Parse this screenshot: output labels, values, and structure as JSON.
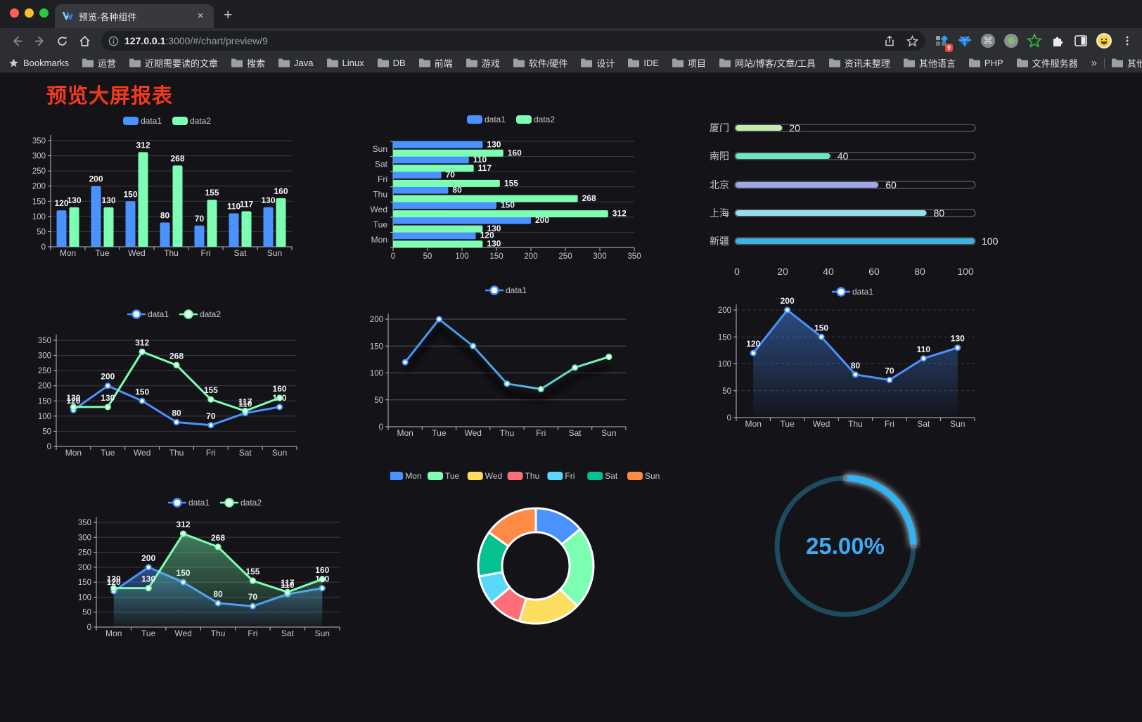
{
  "browser": {
    "tab_title": "预览-各种组件",
    "close_glyph": "×",
    "newtab_glyph": "+",
    "url_host": "127.0.0.1",
    "url_rest": ":3000/#/chart/preview/9",
    "extension_badge": "9",
    "bookmarks_label": "Bookmarks",
    "bookmark_folders": [
      "运营",
      "近期需要读的文章",
      "搜索",
      "Java",
      "Linux",
      "DB",
      "前端",
      "游戏",
      "软件/硬件",
      "设计",
      "IDE",
      "项目",
      "网站/博客/文章/工具",
      "资讯未整理",
      "其他语言",
      "PHP",
      "文件服务器"
    ],
    "overflow_glyph": "»",
    "other_bookmarks": "其他书签"
  },
  "page": {
    "title": "预览大屏报表",
    "title_color": "#f5391c",
    "background": "#131318"
  },
  "palette": {
    "blue": "#4992ff",
    "green": "#7cffb2",
    "yellow": "#fddd60",
    "red": "#ff6e76",
    "cyan": "#58d9f9",
    "teal": "#05c091",
    "orange": "#ff8a45",
    "axis_text": "#c6c9ce",
    "label_text": "#f2f3f5",
    "grid": "#3a3c42"
  },
  "chart_data": [
    {
      "id": "c1",
      "type": "bar",
      "categories": [
        "Mon",
        "Tue",
        "Wed",
        "Thu",
        "Fri",
        "Sat",
        "Sun"
      ],
      "series": [
        {
          "name": "data1",
          "color": "#4992ff",
          "values": [
            120,
            200,
            150,
            80,
            70,
            110,
            130
          ]
        },
        {
          "name": "data2",
          "color": "#7cffb2",
          "values": [
            130,
            130,
            312,
            268,
            155,
            117,
            160
          ]
        }
      ],
      "ylim": [
        0,
        350
      ],
      "ystep": 50,
      "grid": true,
      "legend_position": "top",
      "labels": true
    },
    {
      "id": "c2",
      "type": "bar-horizontal",
      "categories": [
        "Sun",
        "Sat",
        "Fri",
        "Thu",
        "Wed",
        "Tue",
        "Mon"
      ],
      "series": [
        {
          "name": "data1",
          "color": "#4992ff",
          "values": [
            130,
            110,
            70,
            80,
            150,
            200,
            120
          ]
        },
        {
          "name": "data2",
          "color": "#7cffb2",
          "values": [
            160,
            117,
            155,
            268,
            312,
            130,
            130
          ]
        }
      ],
      "xlim": [
        0,
        350
      ],
      "xstep": 50,
      "grid": true,
      "legend_position": "top",
      "labels": true
    },
    {
      "id": "c3",
      "type": "progress-bars",
      "categories": [
        "厦门",
        "南阳",
        "北京",
        "上海",
        "新疆"
      ],
      "values": [
        20,
        40,
        60,
        80,
        100
      ],
      "colors": [
        "#c4ebad",
        "#6be6c1",
        "#a0a7e6",
        "#96dee8",
        "#3fb1e3"
      ],
      "xlim": [
        0,
        100
      ],
      "xticks": [
        0,
        20,
        40,
        60,
        80,
        100
      ],
      "labels": true
    },
    {
      "id": "c4",
      "type": "line",
      "categories": [
        "Mon",
        "Tue",
        "Wed",
        "Thu",
        "Fri",
        "Sat",
        "Sun"
      ],
      "series": [
        {
          "name": "data1",
          "color": "#4992ff",
          "values": [
            120,
            200,
            150,
            80,
            70,
            110,
            130
          ]
        },
        {
          "name": "data2",
          "color": "#7cffb2",
          "values": [
            130,
            130,
            312,
            268,
            155,
            117,
            160
          ]
        }
      ],
      "ylim": [
        0,
        350
      ],
      "ystep": 50,
      "grid": true,
      "legend_position": "top",
      "labels": true
    },
    {
      "id": "c5",
      "type": "line",
      "categories": [
        "Mon",
        "Tue",
        "Wed",
        "Thu",
        "Fri",
        "Sat",
        "Sun"
      ],
      "series": [
        {
          "name": "data1",
          "color_gradient": [
            "#4992ff",
            "#49a8e0",
            "#7cffb2"
          ],
          "marker_colors": [
            "#4992ff",
            "#4992ff",
            "#4aa6e4",
            "#52bcd2",
            "#5ed2b9",
            "#6ce8a8",
            "#7cffb2"
          ],
          "values": [
            120,
            200,
            150,
            80,
            70,
            110,
            130
          ],
          "shadow": true
        }
      ],
      "ylim": [
        0,
        200
      ],
      "ystep": 50,
      "grid": true,
      "legend_position": "top",
      "labels": false
    },
    {
      "id": "c6",
      "type": "area",
      "categories": [
        "Mon",
        "Tue",
        "Wed",
        "Thu",
        "Fri",
        "Sat",
        "Sun"
      ],
      "series": [
        {
          "name": "data1",
          "color": "#4992ff",
          "values": [
            120,
            200,
            150,
            80,
            70,
            110,
            130
          ],
          "area": true
        }
      ],
      "ylim": [
        0,
        200
      ],
      "ystep": 50,
      "grid": "dashed",
      "legend_position": "top",
      "labels": true
    },
    {
      "id": "c7",
      "type": "area",
      "categories": [
        "Mon",
        "Tue",
        "Wed",
        "Thu",
        "Fri",
        "Sat",
        "Sun"
      ],
      "series": [
        {
          "name": "data1",
          "color": "#4992ff",
          "values": [
            120,
            200,
            150,
            80,
            70,
            110,
            130
          ],
          "area": true
        },
        {
          "name": "data2",
          "color": "#7cffb2",
          "values": [
            130,
            130,
            312,
            268,
            155,
            117,
            160
          ],
          "area": true
        }
      ],
      "ylim": [
        0,
        350
      ],
      "ystep": 50,
      "grid": true,
      "legend_position": "top",
      "labels": true
    },
    {
      "id": "c8",
      "type": "pie",
      "categories": [
        "Mon",
        "Tue",
        "Wed",
        "Thu",
        "Fri",
        "Sat",
        "Sun"
      ],
      "values": [
        120,
        200,
        150,
        80,
        70,
        110,
        130
      ],
      "colors": [
        "#4992ff",
        "#7cffb2",
        "#fddd60",
        "#ff6e76",
        "#58d9f9",
        "#05c091",
        "#ff8a45"
      ],
      "donut": true,
      "legend_position": "top"
    },
    {
      "id": "c9",
      "type": "gauge",
      "value": 25,
      "label": "25.00%",
      "progress_color": "#2fb3f3",
      "track_color": "#1d4a5c",
      "text_color": "#3fa9f5"
    }
  ]
}
